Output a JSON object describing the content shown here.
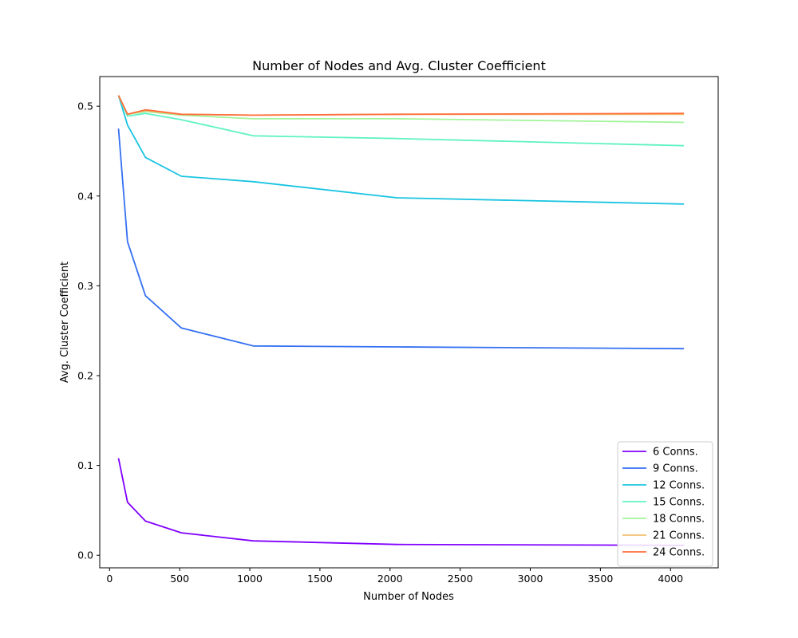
{
  "chart_data": {
    "type": "line",
    "title": "Number of Nodes and Avg. Cluster Coefficient",
    "xlabel": "Number of Nodes",
    "ylabel": "Avg. Cluster Coefficient",
    "xlim": [
      -70,
      4340
    ],
    "ylim": [
      -0.014,
      0.533
    ],
    "xticks": [
      0,
      500,
      1000,
      1500,
      2000,
      2500,
      3000,
      3500,
      4000
    ],
    "yticks": [
      0.0,
      0.1,
      0.2,
      0.3,
      0.4,
      0.5
    ],
    "ytick_labels": [
      "0.0",
      "0.1",
      "0.2",
      "0.3",
      "0.4",
      "0.5"
    ],
    "grid": false,
    "legend_position": "lower-right",
    "x": [
      64,
      128,
      256,
      512,
      1024,
      2048,
      4096
    ],
    "series": [
      {
        "name": "6 Conns.",
        "color": "#8000ff",
        "values": [
          0.108,
          0.059,
          0.038,
          0.025,
          0.016,
          0.012,
          0.011
        ]
      },
      {
        "name": "9 Conns.",
        "color": "#3470f2",
        "values": [
          0.475,
          0.349,
          0.289,
          0.253,
          0.233,
          0.232,
          0.23
        ]
      },
      {
        "name": "12 Conns.",
        "color": "#19c4e1",
        "values": [
          0.512,
          0.479,
          0.443,
          0.422,
          0.416,
          0.398,
          0.391
        ]
      },
      {
        "name": "15 Conns.",
        "color": "#5ff2c4",
        "values": [
          0.512,
          0.489,
          0.492,
          0.485,
          0.467,
          0.464,
          0.456
        ]
      },
      {
        "name": "18 Conns.",
        "color": "#a2f49a",
        "values": [
          0.512,
          0.491,
          0.494,
          0.49,
          0.486,
          0.486,
          0.482
        ]
      },
      {
        "name": "21 Conns.",
        "color": "#f0c170",
        "values": [
          0.512,
          0.491,
          0.495,
          0.491,
          0.49,
          0.491,
          0.491
        ]
      },
      {
        "name": "24 Conns.",
        "color": "#ff6e3c",
        "values": [
          0.512,
          0.491,
          0.496,
          0.491,
          0.49,
          0.491,
          0.492
        ]
      }
    ]
  }
}
